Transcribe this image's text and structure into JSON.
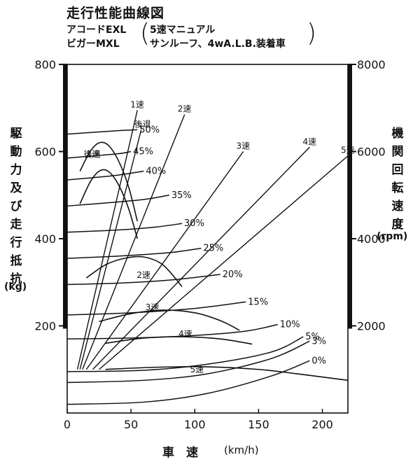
{
  "header": {
    "title": "走行性能曲線図",
    "model1": "アコードEXL",
    "model2": "ビガーMXL",
    "spec1": "5速マニュアル",
    "spec2": "サンルーフ、4wA.L.B.装着車"
  },
  "chart_data": {
    "type": "line",
    "xlabel": "車　速",
    "xunit": "(km/h)",
    "ylabel_left": "駆動力 及び 走行抵抗",
    "yunit_left": "(kg)",
    "ylabel_right": "機関回転速度",
    "yunit_right": "(rpm)",
    "xlim": [
      0,
      220
    ],
    "ylim_left": [
      0,
      800
    ],
    "ylim_right": [
      0,
      8000
    ],
    "x_ticks": [
      0,
      50,
      100,
      150,
      200
    ],
    "y_ticks_left": [
      200,
      400,
      600,
      800
    ],
    "y_ticks_right": [
      2000,
      4000,
      6000,
      8000
    ],
    "resistance_curves": [
      {
        "name": "50%",
        "points": [
          [
            0,
            640
          ],
          [
            20,
            644
          ],
          [
            40,
            648
          ],
          [
            55,
            650
          ]
        ]
      },
      {
        "name": "45%",
        "points": [
          [
            0,
            585
          ],
          [
            20,
            590
          ],
          [
            40,
            595
          ],
          [
            50,
            600
          ]
        ]
      },
      {
        "name": "40%",
        "points": [
          [
            0,
            535
          ],
          [
            20,
            540
          ],
          [
            40,
            546
          ],
          [
            60,
            555
          ]
        ]
      },
      {
        "name": "35%",
        "points": [
          [
            0,
            475
          ],
          [
            30,
            482
          ],
          [
            60,
            490
          ],
          [
            80,
            500
          ]
        ]
      },
      {
        "name": "30%",
        "points": [
          [
            0,
            415
          ],
          [
            40,
            420
          ],
          [
            70,
            427
          ],
          [
            90,
            435
          ]
        ]
      },
      {
        "name": "25%",
        "points": [
          [
            0,
            355
          ],
          [
            40,
            360
          ],
          [
            80,
            368
          ],
          [
            105,
            378
          ]
        ]
      },
      {
        "name": "20%",
        "points": [
          [
            0,
            295
          ],
          [
            40,
            298
          ],
          [
            80,
            305
          ],
          [
            120,
            318
          ]
        ]
      },
      {
        "name": "15%",
        "points": [
          [
            0,
            225
          ],
          [
            50,
            230
          ],
          [
            100,
            240
          ],
          [
            140,
            255
          ]
        ]
      },
      {
        "name": "10%",
        "points": [
          [
            0,
            170
          ],
          [
            50,
            172
          ],
          [
            100,
            178
          ],
          [
            140,
            188
          ],
          [
            165,
            203
          ]
        ]
      },
      {
        "name": "5%",
        "points": [
          [
            0,
            95
          ],
          [
            60,
            98
          ],
          [
            110,
            112
          ],
          [
            160,
            140
          ],
          [
            185,
            175
          ]
        ]
      },
      {
        "name": "3%",
        "points": [
          [
            0,
            70
          ],
          [
            60,
            75
          ],
          [
            110,
            90
          ],
          [
            160,
            125
          ],
          [
            190,
            165
          ]
        ]
      },
      {
        "name": "0%",
        "points": [
          [
            0,
            20
          ],
          [
            60,
            25
          ],
          [
            110,
            45
          ],
          [
            160,
            85
          ],
          [
            190,
            120
          ]
        ]
      }
    ],
    "driving_force": [
      {
        "name": "1速",
        "points": [
          [
            10,
            555
          ],
          [
            18,
            600
          ],
          [
            25,
            620
          ],
          [
            32,
            615
          ],
          [
            40,
            580
          ],
          [
            48,
            520
          ],
          [
            55,
            440
          ]
        ]
      },
      {
        "name": "後退",
        "points": [
          [
            10,
            480
          ],
          [
            18,
            530
          ],
          [
            25,
            555
          ],
          [
            32,
            555
          ],
          [
            40,
            525
          ],
          [
            48,
            470
          ],
          [
            55,
            400
          ]
        ]
      },
      {
        "name": "2速",
        "points": [
          [
            15,
            310
          ],
          [
            30,
            340
          ],
          [
            45,
            355
          ],
          [
            60,
            358
          ],
          [
            75,
            340
          ],
          [
            90,
            290
          ]
        ]
      },
      {
        "name": "3速",
        "points": [
          [
            25,
            210
          ],
          [
            50,
            228
          ],
          [
            75,
            236
          ],
          [
            100,
            230
          ],
          [
            120,
            212
          ],
          [
            135,
            190
          ]
        ]
      },
      {
        "name": "4速",
        "points": [
          [
            30,
            160
          ],
          [
            60,
            172
          ],
          [
            90,
            175
          ],
          [
            120,
            170
          ],
          [
            145,
            158
          ]
        ]
      },
      {
        "name": "5速",
        "points": [
          [
            30,
            100
          ],
          [
            70,
            105
          ],
          [
            110,
            106
          ],
          [
            150,
            100
          ],
          [
            180,
            90
          ],
          [
            220,
            75
          ]
        ]
      }
    ],
    "engine_speed_lines": [
      {
        "name": "1速",
        "x_at_6000rpm": 46,
        "x_at_800": [
          [
            8,
            1000
          ],
          [
            55,
            6950
          ]
        ]
      },
      {
        "name": "後退",
        "points_rpm": [
          [
            10,
            1000
          ],
          [
            58,
            6500
          ]
        ]
      },
      {
        "name": "2速",
        "points_rpm": [
          [
            12,
            1000
          ],
          [
            92,
            6850
          ]
        ]
      },
      {
        "name": "3速",
        "points_rpm": [
          [
            15,
            1000
          ],
          [
            138,
            6000
          ]
        ]
      },
      {
        "name": "4速",
        "points_rpm": [
          [
            20,
            1000
          ],
          [
            190,
            6100
          ]
        ]
      },
      {
        "name": "5速",
        "points_rpm": [
          [
            25,
            1000
          ],
          [
            220,
            5900
          ]
        ]
      }
    ]
  }
}
